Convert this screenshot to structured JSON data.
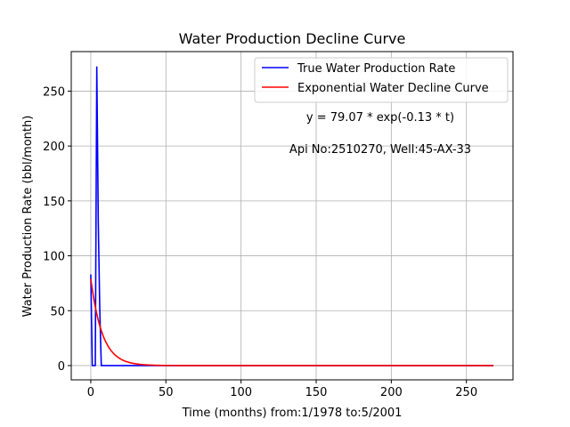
{
  "chart_data": {
    "type": "line",
    "title": "Water Production Decline Curve",
    "xlabel": "Time (months) from:1/1978 to:5/2001",
    "ylabel": "Water Production Rate (bbl/month)",
    "xlim": [
      -13,
      281
    ],
    "ylim": [
      -13,
      286
    ],
    "x_ticks": [
      0,
      50,
      100,
      150,
      200,
      250
    ],
    "y_ticks": [
      0,
      50,
      100,
      150,
      200,
      250
    ],
    "grid": true,
    "legend_position": "top-right",
    "annotations": [
      "y = 79.07 * exp(-0.13 * t)",
      "Api No:2510270, Well:45-AX-33"
    ],
    "series": [
      {
        "name": "True Water Production Rate",
        "color": "#0000ff",
        "points": [
          [
            0,
            83
          ],
          [
            1,
            0
          ],
          [
            2,
            0
          ],
          [
            3,
            0
          ],
          [
            4,
            272
          ],
          [
            5,
            130
          ],
          [
            6,
            50
          ],
          [
            7,
            0
          ],
          [
            8,
            0
          ],
          [
            20,
            0
          ],
          [
            50,
            0
          ],
          [
            100,
            0
          ],
          [
            150,
            0
          ],
          [
            200,
            0
          ],
          [
            250,
            0
          ],
          [
            268,
            0
          ]
        ]
      },
      {
        "name": "Exponential Water Decline Curve",
        "color": "#ff0000",
        "model": {
          "a": 79.07,
          "b": 0.13,
          "t_start": 0,
          "t_end": 268
        }
      }
    ]
  }
}
